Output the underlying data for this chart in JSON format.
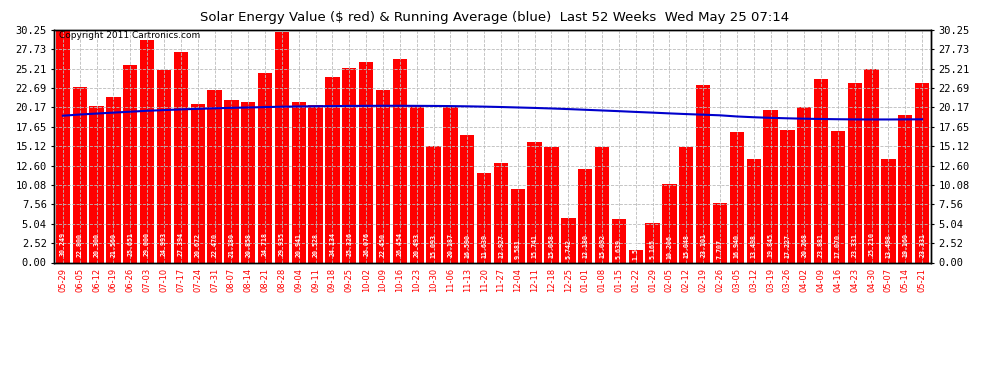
{
  "title": "Solar Energy Value ($ red) & Running Average (blue)  Last 52 Weeks  Wed May 25 07:14",
  "copyright": "Copyright 2011 Cartronics.com",
  "bar_color": "#ff0000",
  "line_color": "#0000cc",
  "background_color": "#ffffff",
  "plot_bg_color": "#ffffff",
  "grid_color": "#bbbbbb",
  "categories": [
    "05-29",
    "06-05",
    "06-12",
    "06-19",
    "06-26",
    "07-03",
    "07-10",
    "07-17",
    "07-24",
    "07-31",
    "08-07",
    "08-14",
    "08-21",
    "08-28",
    "09-04",
    "09-11",
    "09-18",
    "09-25",
    "10-02",
    "10-09",
    "10-16",
    "10-23",
    "10-30",
    "11-06",
    "11-13",
    "11-20",
    "11-27",
    "12-04",
    "12-11",
    "12-18",
    "12-25",
    "01-01",
    "01-08",
    "01-15",
    "01-22",
    "01-29",
    "02-05",
    "02-12",
    "02-19",
    "02-26",
    "03-05",
    "03-12",
    "03-19",
    "03-26",
    "04-02",
    "04-09",
    "04-16",
    "04-23",
    "04-30",
    "05-07",
    "05-14",
    "05-21"
  ],
  "values": [
    30.249,
    22.8,
    20.3,
    21.56,
    25.651,
    29.0,
    24.993,
    27.394,
    20.672,
    22.47,
    21.18,
    20.858,
    24.718,
    29.935,
    20.941,
    20.528,
    24.134,
    25.326,
    26.076,
    22.45,
    26.454,
    20.493,
    15.093,
    20.187,
    16.59,
    11.639,
    12.927,
    9.581,
    15.741,
    15.058,
    5.742,
    12.18,
    15.092,
    5.639,
    1.577,
    5.165,
    10.206,
    15.048,
    23.101,
    7.707,
    16.94,
    13.498,
    19.845,
    17.227,
    20.268,
    23.881,
    17.07,
    23.331,
    25.21,
    13.498,
    19.16,
    23.331
  ],
  "running_avg": [
    19.1,
    19.25,
    19.38,
    19.5,
    19.62,
    19.74,
    19.83,
    19.92,
    19.99,
    20.06,
    20.12,
    20.17,
    20.22,
    20.27,
    20.3,
    20.33,
    20.35,
    20.37,
    20.38,
    20.39,
    20.39,
    20.38,
    20.37,
    20.35,
    20.32,
    20.28,
    20.23,
    20.17,
    20.11,
    20.04,
    19.96,
    19.87,
    19.78,
    19.69,
    19.59,
    19.5,
    19.4,
    19.31,
    19.23,
    19.15,
    19.0,
    18.9,
    18.82,
    18.76,
    18.71,
    18.67,
    18.64,
    18.62,
    18.61,
    18.61,
    18.62,
    18.63
  ],
  "yticks": [
    0.0,
    2.52,
    5.04,
    7.56,
    10.08,
    12.6,
    15.12,
    17.65,
    20.17,
    22.69,
    25.21,
    27.73,
    30.25
  ],
  "ymax": 30.25,
  "ymin": 0.0
}
